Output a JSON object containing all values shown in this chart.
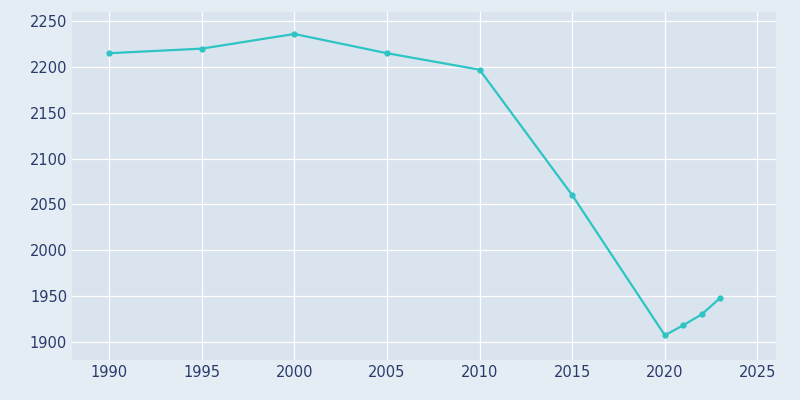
{
  "years": [
    1990,
    1995,
    2000,
    2005,
    2010,
    2015,
    2020,
    2021,
    2022,
    2023
  ],
  "population": [
    2215,
    2220,
    2236,
    2215,
    2197,
    2060,
    1907,
    1918,
    1930,
    1948
  ],
  "line_color": "#2EC4C4",
  "marker_color": "#2EC4C4",
  "bg_color": "#E4ECF4",
  "plot_bg_color": "#DAE4EE",
  "xlim": [
    1988,
    2026
  ],
  "ylim": [
    1880,
    2260
  ],
  "xticks": [
    1990,
    1995,
    2000,
    2005,
    2010,
    2015,
    2020,
    2025
  ],
  "yticks": [
    1900,
    1950,
    2000,
    2050,
    2100,
    2150,
    2200,
    2250
  ],
  "marker_size": 3.5,
  "line_width": 1.6,
  "tick_label_color": "#2B3A6B",
  "tick_label_size": 10.5,
  "grid_color": "#FFFFFF",
  "grid_linewidth": 0.9
}
